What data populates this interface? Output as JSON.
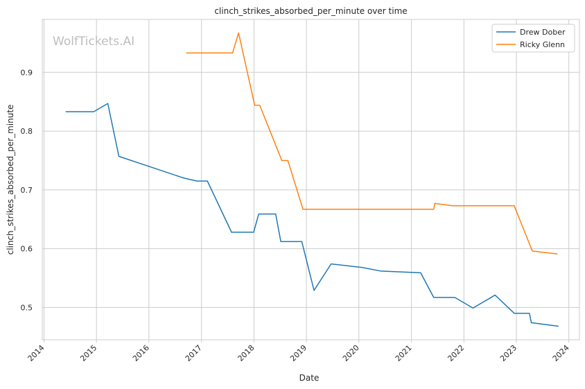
{
  "chart_data": {
    "type": "line",
    "title": "clinch_strikes_absorbed_per_minute over time",
    "xlabel": "Date",
    "ylabel": "clinch_strikes_absorbed_per_minute",
    "watermark": "WolfTickets.AI",
    "x_ticks": [
      "2014",
      "2015",
      "2016",
      "2017",
      "2018",
      "2019",
      "2020",
      "2021",
      "2022",
      "2023",
      "2024"
    ],
    "y_ticks": [
      "0.5",
      "0.6",
      "0.7",
      "0.8",
      "0.9"
    ],
    "xlim": [
      "2013-12-20",
      "2024-03-15"
    ],
    "ylim": [
      0.445,
      0.99
    ],
    "grid": true,
    "legend_position": "top-right",
    "series": [
      {
        "name": "Drew Dober",
        "color": "#1f77b4",
        "points": [
          [
            "2014-06-01",
            0.833
          ],
          [
            "2014-12-13",
            0.833
          ],
          [
            "2015-03-21",
            0.847
          ],
          [
            "2015-06-06",
            0.757
          ],
          [
            "2016-01-01",
            0.74
          ],
          [
            "2016-09-01",
            0.72
          ],
          [
            "2016-12-01",
            0.715
          ],
          [
            "2017-02-11",
            0.715
          ],
          [
            "2017-07-29",
            0.628
          ],
          [
            "2017-12-30",
            0.628
          ],
          [
            "2018-02-03",
            0.659
          ],
          [
            "2018-06-01",
            0.659
          ],
          [
            "2018-07-07",
            0.612
          ],
          [
            "2018-11-30",
            0.612
          ],
          [
            "2019-02-23",
            0.529
          ],
          [
            "2019-06-22",
            0.574
          ],
          [
            "2020-01-25",
            0.568
          ],
          [
            "2020-05-30",
            0.562
          ],
          [
            "2021-03-06",
            0.559
          ],
          [
            "2021-06-05",
            0.517
          ],
          [
            "2021-10-30",
            0.517
          ],
          [
            "2022-03-05",
            0.499
          ],
          [
            "2022-08-06",
            0.521
          ],
          [
            "2022-12-17",
            0.49
          ],
          [
            "2023-04-02",
            0.49
          ],
          [
            "2023-04-15",
            0.474
          ],
          [
            "2023-10-21",
            0.468
          ]
        ]
      },
      {
        "name": "Ricky Glenn",
        "color": "#ff7f0e",
        "points": [
          [
            "2016-09-17",
            0.933
          ],
          [
            "2017-08-05",
            0.933
          ],
          [
            "2017-09-16",
            0.967
          ],
          [
            "2018-01-06",
            0.844
          ],
          [
            "2018-02-10",
            0.844
          ],
          [
            "2018-07-14",
            0.75
          ],
          [
            "2018-08-25",
            0.75
          ],
          [
            "2018-12-08",
            0.667
          ],
          [
            "2021-06-05",
            0.667
          ],
          [
            "2021-06-12",
            0.677
          ],
          [
            "2021-10-16",
            0.673
          ],
          [
            "2022-12-17",
            0.673
          ],
          [
            "2023-04-22",
            0.596
          ],
          [
            "2023-10-14",
            0.591
          ]
        ]
      }
    ]
  }
}
